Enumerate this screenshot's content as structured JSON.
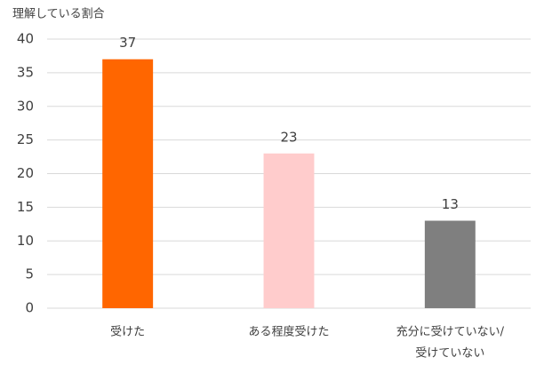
{
  "chart_data": {
    "type": "bar",
    "y_label": "理解している割合",
    "categories": [
      [
        "受けた"
      ],
      [
        "ある程度受けた"
      ],
      [
        "充分に受けていない/",
        "受けていない"
      ]
    ],
    "values": [
      37,
      23,
      13
    ],
    "colors": [
      "#FF6600",
      "#FFCCCC",
      "#7F7F7F"
    ],
    "ylim": [
      0,
      40
    ],
    "yticks": [
      0,
      5,
      10,
      15,
      20,
      25,
      30,
      35,
      40
    ],
    "grid": true
  }
}
